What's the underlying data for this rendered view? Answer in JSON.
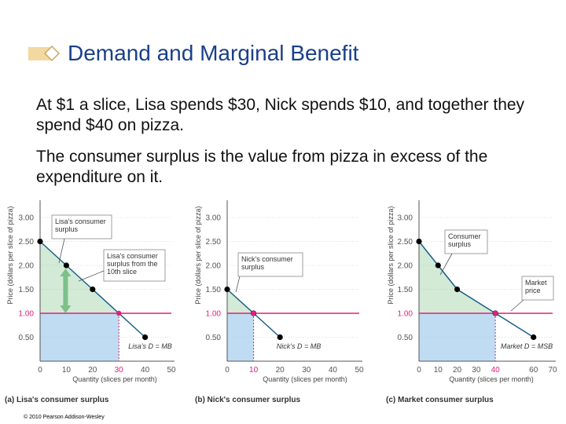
{
  "slide": {
    "title": "Demand and Marginal Benefit",
    "para1": "At $1 a slice, Lisa spends $30, Nick spends $10, and together they spend $40 on pizza.",
    "para2": "The consumer surplus is the value from pizza in excess of the expenditure on it.",
    "copyright": "© 2010 Pearson Addison-Wesley"
  },
  "colors": {
    "title": "#1a3f8a",
    "surplus": "#d2ead6",
    "expenditure": "#bfdcf2",
    "price_line": "#e0207a",
    "demand": "#1a5f8a",
    "bullet": "#f2d9a0"
  },
  "chart_data": [
    {
      "type": "line",
      "caption": "(a) Lisa's consumer surplus",
      "xlabel": "Quantity (slices per month)",
      "ylabel": "Price (dollars per slice of pizza)",
      "xlim": [
        0,
        50
      ],
      "ylim": [
        0,
        3.0
      ],
      "x_ticks": [
        0,
        10,
        20,
        30,
        40,
        50
      ],
      "x_tick_labels": [
        "0",
        "10",
        "20",
        "30",
        "40",
        "50"
      ],
      "y_ticks": [
        0.5,
        1.0,
        1.5,
        2.0,
        2.5,
        3.0
      ],
      "y_tick_labels": [
        "0.50",
        "1.00",
        "1.50",
        "2.00",
        "2.50",
        "3.00"
      ],
      "price": 1.0,
      "price_label": "1.00",
      "quantity_at_price": 30,
      "quantity_label": "30",
      "demand": {
        "name": "Lisa's D = MB",
        "x": [
          0,
          10,
          20,
          40
        ],
        "y": [
          2.5,
          2.0,
          1.5,
          0.5
        ]
      },
      "annotations": [
        "Lisa's consumer surplus",
        "Lisa's consumer surplus from the 10th slice"
      ]
    },
    {
      "type": "line",
      "caption": "(b) Nick's consumer surplus",
      "xlabel": "Quantity (slices per month)",
      "ylabel": "Price (dollars per slice of pizza)",
      "xlim": [
        0,
        50
      ],
      "ylim": [
        0,
        3.0
      ],
      "x_ticks": [
        0,
        10,
        20,
        30,
        40,
        50
      ],
      "x_tick_labels": [
        "0",
        "10",
        "20",
        "30",
        "40",
        "50"
      ],
      "y_ticks": [
        0.5,
        1.0,
        1.5,
        2.0,
        2.5,
        3.0
      ],
      "y_tick_labels": [
        "0.50",
        "1.00",
        "1.50",
        "2.00",
        "2.50",
        "3.00"
      ],
      "price": 1.0,
      "price_label": "1.00",
      "quantity_at_price": 10,
      "quantity_label": "10",
      "demand": {
        "name": "Nick's D = MB",
        "x": [
          0,
          10,
          20
        ],
        "y": [
          1.5,
          1.0,
          0.5
        ]
      },
      "annotations": [
        "Nick's consumer surplus"
      ]
    },
    {
      "type": "line",
      "caption": "(c) Market consumer surplus",
      "xlabel": "Quantity (slices per month)",
      "ylabel": "Price (dollars per slice of pizza)",
      "xlim": [
        0,
        70
      ],
      "ylim": [
        0,
        3.0
      ],
      "x_ticks": [
        0,
        10,
        20,
        30,
        40,
        60,
        70
      ],
      "x_tick_labels": [
        "0",
        "10",
        "20",
        "30",
        "40",
        "60",
        "70"
      ],
      "y_ticks": [
        0.5,
        1.0,
        1.5,
        2.0,
        2.5,
        3.0
      ],
      "y_tick_labels": [
        "0.50",
        "1.00",
        "1.50",
        "2.00",
        "2.50",
        "3.00"
      ],
      "price": 1.0,
      "price_label": "1.00",
      "quantity_at_price": 40,
      "quantity_label": "40",
      "demand": {
        "name": "Market D = MSB",
        "x": [
          0,
          10,
          20,
          40,
          60
        ],
        "y": [
          2.5,
          2.0,
          1.5,
          1.0,
          0.5
        ]
      },
      "annotations": [
        "Consumer surplus",
        "Market price"
      ]
    }
  ]
}
